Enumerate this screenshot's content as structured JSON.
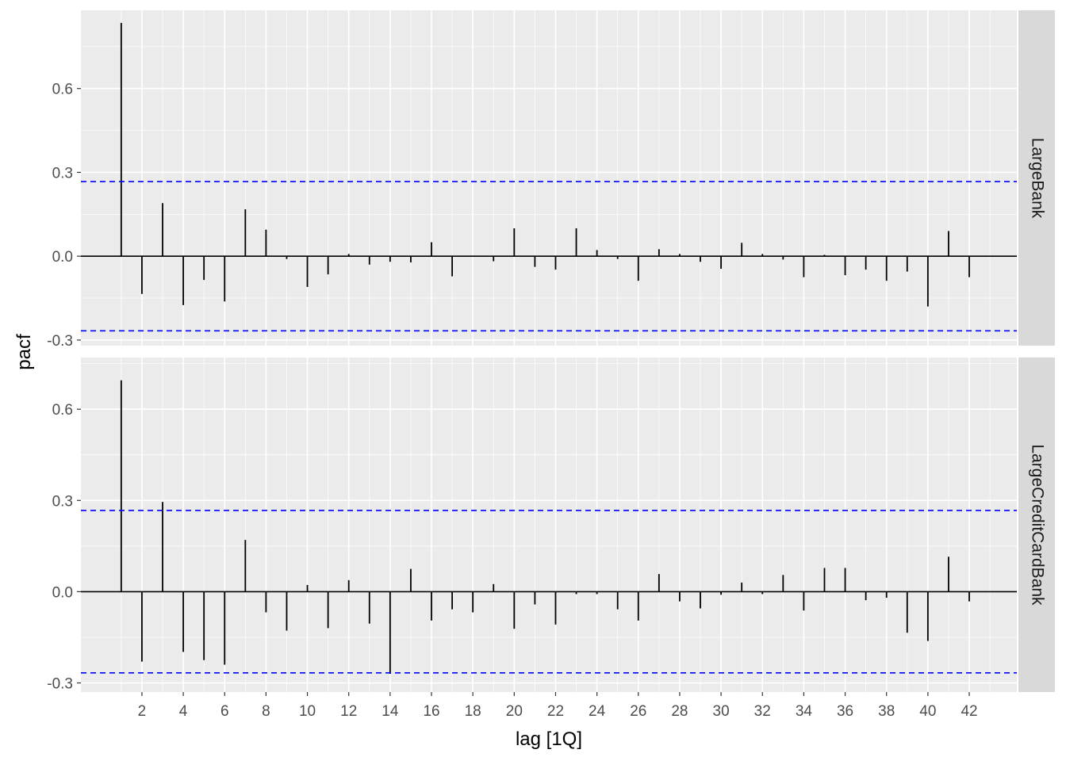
{
  "chart_data": {
    "type": "bar",
    "xlabel": "lag [1Q]",
    "ylabel": "pacf",
    "x_ticks": [
      2,
      4,
      6,
      8,
      10,
      12,
      14,
      16,
      18,
      20,
      22,
      24,
      26,
      28,
      30,
      32,
      34,
      36,
      38,
      40,
      42
    ],
    "y_ticks": [
      -0.3,
      0.0,
      0.3,
      0.6
    ],
    "y_tick_labels": [
      "-0.3",
      "0.0",
      "0.3",
      "0.6"
    ],
    "xlim": [
      -0.95,
      44.3
    ],
    "grid": true,
    "zero_line": 0,
    "confidence_bound": 0.267,
    "colors": {
      "panel_bg": "#ebebeb",
      "grid": "#ffffff",
      "strip_bg": "#d9d9d9",
      "bars": "#000000",
      "bounds": "#0000ff"
    },
    "panels": [
      {
        "strip_label": "LargeBank",
        "ylim": [
          -0.32,
          0.88
        ],
        "lags": [
          1,
          2,
          3,
          4,
          5,
          6,
          7,
          8,
          9,
          10,
          11,
          12,
          13,
          14,
          15,
          16,
          17,
          18,
          19,
          20,
          21,
          22,
          23,
          24,
          25,
          26,
          27,
          28,
          29,
          30,
          31,
          32,
          33,
          34,
          35,
          36,
          37,
          38,
          39,
          40,
          41,
          42
        ],
        "values": [
          0.835,
          -0.135,
          0.19,
          -0.175,
          -0.085,
          -0.162,
          0.168,
          0.095,
          -0.01,
          -0.11,
          -0.065,
          0.008,
          -0.03,
          -0.02,
          -0.022,
          0.05,
          -0.072,
          0.0,
          -0.018,
          0.1,
          -0.038,
          -0.048,
          0.1,
          0.022,
          -0.01,
          -0.088,
          0.025,
          0.008,
          -0.02,
          -0.045,
          0.048,
          0.008,
          -0.012,
          -0.075,
          0.005,
          -0.068,
          -0.048,
          -0.088,
          -0.055,
          -0.18,
          0.09,
          -0.075
        ]
      },
      {
        "strip_label": "LargeCreditCardBank",
        "ylim": [
          -0.33,
          0.77
        ],
        "lags": [
          1,
          2,
          3,
          4,
          5,
          6,
          7,
          8,
          9,
          10,
          11,
          12,
          13,
          14,
          15,
          16,
          17,
          18,
          19,
          20,
          21,
          22,
          23,
          24,
          25,
          26,
          27,
          28,
          29,
          30,
          31,
          32,
          33,
          34,
          35,
          36,
          37,
          38,
          39,
          40,
          41,
          42
        ],
        "values": [
          0.695,
          -0.23,
          0.295,
          -0.198,
          -0.225,
          -0.24,
          0.17,
          -0.068,
          -0.128,
          0.022,
          -0.12,
          0.038,
          -0.105,
          -0.27,
          0.075,
          -0.095,
          -0.058,
          -0.068,
          0.025,
          -0.122,
          -0.042,
          -0.108,
          -0.008,
          -0.008,
          -0.058,
          -0.095,
          0.058,
          -0.032,
          -0.055,
          -0.01,
          0.03,
          -0.008,
          0.055,
          -0.062,
          0.078,
          0.078,
          -0.028,
          -0.02,
          -0.135,
          -0.162,
          0.115,
          -0.032
        ]
      }
    ]
  }
}
